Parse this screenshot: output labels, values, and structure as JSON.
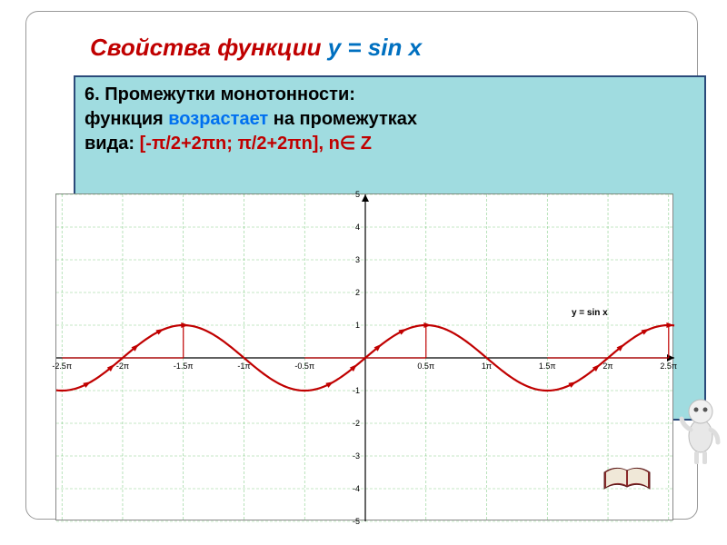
{
  "title": {
    "prefix": "Свойства функции ",
    "formula": "y = sin x"
  },
  "property": {
    "line1": "6. Промежутки монотонности:",
    "line2_a": "функция ",
    "line2_b": "возрастает",
    "line2_c": " на промежутках",
    "line3_a": "вида:        ",
    "interval": "[-π/2+2πn;  π/2+2πn], n∈ Z"
  },
  "chart": {
    "type": "line",
    "function_label": "y = sin x",
    "xlim": [
      -8.0,
      8.0
    ],
    "ylim": [
      -5,
      5
    ],
    "x_ticks_pi": [
      -2.5,
      -2,
      -1.5,
      -1,
      -0.5,
      0.5,
      1,
      1.5,
      2,
      2.5
    ],
    "y_ticks": [
      -5,
      -4,
      -3,
      -2,
      -1,
      1,
      2,
      3,
      4,
      5
    ],
    "curve_color": "#c00000",
    "grid_color": "#3cb043",
    "bg_color": "#ffffff",
    "axis_color": "#000000",
    "increasing_overlay": {
      "segments_pi": [
        [
          -2.5,
          -1.5
        ],
        [
          -0.5,
          0.5
        ],
        [
          1.5,
          2.5
        ]
      ],
      "peak_verticals_pi": [
        -1.5,
        0.5,
        2.5
      ]
    }
  }
}
